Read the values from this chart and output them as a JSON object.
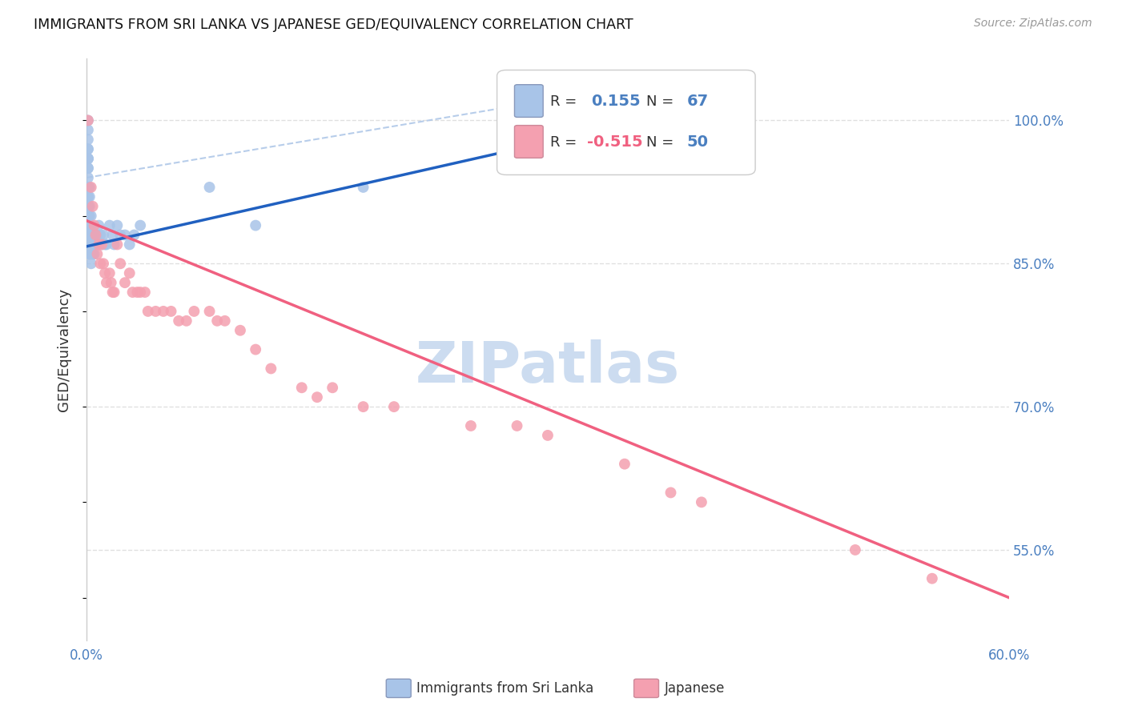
{
  "title": "IMMIGRANTS FROM SRI LANKA VS JAPANESE GED/EQUIVALENCY CORRELATION CHART",
  "source": "Source: ZipAtlas.com",
  "ylabel": "GED/Equivalency",
  "yticks": [
    0.55,
    0.7,
    0.85,
    1.0
  ],
  "ytick_labels": [
    "55.0%",
    "70.0%",
    "85.0%",
    "100.0%"
  ],
  "xmin": 0.0,
  "xmax": 0.6,
  "ymin": 0.455,
  "ymax": 1.065,
  "sri_lanka_R": 0.155,
  "sri_lanka_N": 67,
  "japanese_R": -0.515,
  "japanese_N": 50,
  "sri_lanka_color": "#a8c4e8",
  "japanese_color": "#f4a0b0",
  "sri_lanka_line_color": "#2060c0",
  "japanese_line_color": "#f06080",
  "dashed_line_color": "#b0c8e8",
  "sri_lanka_x": [
    0.001,
    0.001,
    0.001,
    0.001,
    0.001,
    0.001,
    0.001,
    0.001,
    0.001,
    0.001,
    0.001,
    0.001,
    0.001,
    0.001,
    0.001,
    0.001,
    0.001,
    0.001,
    0.001,
    0.001,
    0.001,
    0.001,
    0.002,
    0.002,
    0.002,
    0.002,
    0.002,
    0.002,
    0.002,
    0.002,
    0.002,
    0.002,
    0.003,
    0.003,
    0.003,
    0.003,
    0.003,
    0.003,
    0.004,
    0.004,
    0.004,
    0.005,
    0.005,
    0.005,
    0.006,
    0.006,
    0.007,
    0.008,
    0.008,
    0.009,
    0.01,
    0.011,
    0.012,
    0.013,
    0.015,
    0.017,
    0.018,
    0.02,
    0.022,
    0.025,
    0.028,
    0.031,
    0.035,
    0.08,
    0.11,
    0.18,
    0.28
  ],
  "sri_lanka_y": [
    1.0,
    0.99,
    0.98,
    0.97,
    0.97,
    0.96,
    0.96,
    0.96,
    0.95,
    0.95,
    0.94,
    0.93,
    0.93,
    0.92,
    0.92,
    0.91,
    0.91,
    0.9,
    0.9,
    0.89,
    0.88,
    0.87,
    0.93,
    0.92,
    0.91,
    0.9,
    0.89,
    0.89,
    0.88,
    0.87,
    0.86,
    0.86,
    0.9,
    0.89,
    0.88,
    0.87,
    0.86,
    0.85,
    0.88,
    0.87,
    0.86,
    0.88,
    0.87,
    0.86,
    0.88,
    0.87,
    0.88,
    0.89,
    0.87,
    0.88,
    0.87,
    0.88,
    0.87,
    0.87,
    0.89,
    0.88,
    0.87,
    0.89,
    0.88,
    0.88,
    0.87,
    0.88,
    0.89,
    0.93,
    0.89,
    0.93,
    0.97
  ],
  "japanese_x": [
    0.001,
    0.003,
    0.004,
    0.005,
    0.006,
    0.007,
    0.008,
    0.009,
    0.01,
    0.011,
    0.012,
    0.013,
    0.015,
    0.016,
    0.017,
    0.018,
    0.02,
    0.022,
    0.025,
    0.028,
    0.03,
    0.033,
    0.035,
    0.038,
    0.04,
    0.045,
    0.05,
    0.055,
    0.06,
    0.065,
    0.07,
    0.08,
    0.085,
    0.09,
    0.1,
    0.11,
    0.12,
    0.14,
    0.15,
    0.16,
    0.18,
    0.2,
    0.25,
    0.28,
    0.3,
    0.35,
    0.38,
    0.4,
    0.5,
    0.55
  ],
  "japanese_y": [
    1.0,
    0.93,
    0.91,
    0.89,
    0.88,
    0.86,
    0.87,
    0.85,
    0.87,
    0.85,
    0.84,
    0.83,
    0.84,
    0.83,
    0.82,
    0.82,
    0.87,
    0.85,
    0.83,
    0.84,
    0.82,
    0.82,
    0.82,
    0.82,
    0.8,
    0.8,
    0.8,
    0.8,
    0.79,
    0.79,
    0.8,
    0.8,
    0.79,
    0.79,
    0.78,
    0.76,
    0.74,
    0.72,
    0.71,
    0.72,
    0.7,
    0.7,
    0.68,
    0.68,
    0.67,
    0.64,
    0.61,
    0.6,
    0.55,
    0.52
  ],
  "watermark": "ZIPatlas",
  "watermark_color": "#ccdcf0",
  "background_color": "#ffffff",
  "grid_color": "#dddddd"
}
